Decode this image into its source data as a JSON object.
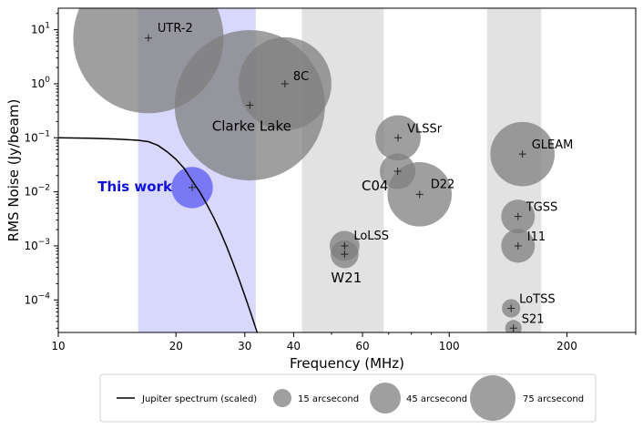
{
  "chart_data": {
    "type": "scatter",
    "xlabel": "Frequency (MHz)",
    "ylabel": "RMS Noise (Jy/beam)",
    "xscale": "log",
    "yscale": "log",
    "xlim": [
      10,
      300
    ],
    "ylim": [
      2.5e-05,
      25
    ],
    "x_ticks": [
      10,
      20,
      30,
      40,
      60,
      100,
      200
    ],
    "y_ticks": [
      {
        "value": 10,
        "mant": "10",
        "exp": "1"
      },
      {
        "value": 1,
        "mant": "10",
        "exp": "0"
      },
      {
        "value": 0.1,
        "mant": "10",
        "exp": "−1"
      },
      {
        "value": 0.01,
        "mant": "10",
        "exp": "−2"
      },
      {
        "value": 0.001,
        "mant": "10",
        "exp": "−3"
      },
      {
        "value": 0.0001,
        "mant": "10",
        "exp": "−4"
      }
    ],
    "bands": [
      {
        "x0": 16,
        "x1": 32,
        "color": "#d8d8fc"
      },
      {
        "x0": 42,
        "x1": 68,
        "color": "#e2e2e2"
      },
      {
        "x0": 125,
        "x1": 172,
        "color": "#e2e2e2"
      }
    ],
    "points": [
      {
        "label": "UTR-2",
        "x": 17,
        "y": 7,
        "res": 75,
        "highlight": false
      },
      {
        "label": "8C",
        "x": 38,
        "y": 1,
        "res": 45,
        "highlight": false
      },
      {
        "label": "Clarke Lake",
        "x": 30.9,
        "y": 0.4,
        "res": 75,
        "highlight": false
      },
      {
        "label": "VLSSr",
        "x": 74,
        "y": 0.1,
        "res": 20,
        "highlight": false
      },
      {
        "label": "C04",
        "x": 73.8,
        "y": 0.024,
        "res": 15,
        "highlight": false
      },
      {
        "label": "D22",
        "x": 84,
        "y": 0.009,
        "res": 30,
        "highlight": false
      },
      {
        "label": "GLEAM",
        "x": 154,
        "y": 0.05,
        "res": 30,
        "highlight": false
      },
      {
        "label": "This work",
        "x": 22,
        "y": 0.012,
        "res": 18,
        "highlight": true
      },
      {
        "label": "LoLSS",
        "x": 54,
        "y": 0.001,
        "res": 12,
        "highlight": false
      },
      {
        "label": "W21",
        "x": 54,
        "y": 0.0007,
        "res": 11,
        "highlight": false
      },
      {
        "label": "TGSS",
        "x": 150,
        "y": 0.0035,
        "res": 14,
        "highlight": false
      },
      {
        "label": "I11",
        "x": 150,
        "y": 0.001,
        "res": 14,
        "highlight": false
      },
      {
        "label": "LoTSS",
        "x": 144,
        "y": 7e-05,
        "res": 6,
        "highlight": false
      },
      {
        "label": "S21",
        "x": 146,
        "y": 3e-05,
        "res": 5,
        "highlight": false
      }
    ],
    "jupiter_curve": [
      [
        10,
        0.1
      ],
      [
        12,
        0.098
      ],
      [
        14,
        0.095
      ],
      [
        16,
        0.09
      ],
      [
        17,
        0.085
      ],
      [
        18,
        0.072
      ],
      [
        19,
        0.055
      ],
      [
        20,
        0.04
      ],
      [
        21,
        0.027
      ],
      [
        22,
        0.016
      ],
      [
        23,
        0.01
      ],
      [
        24,
        0.0058
      ],
      [
        25,
        0.0033
      ],
      [
        26,
        0.0018
      ],
      [
        27,
        0.00095
      ],
      [
        28,
        0.00048
      ],
      [
        29,
        0.00024
      ],
      [
        30,
        0.00012
      ],
      [
        31,
        6e-05
      ],
      [
        32,
        3e-05
      ],
      [
        32.6,
        2e-05
      ]
    ],
    "legend": {
      "line_label": "Jupiter spectrum (scaled)",
      "sizes": [
        {
          "label": "15 arcsecond",
          "res": 15
        },
        {
          "label": "45 arcsecond",
          "res": 45
        },
        {
          "label": "75 arcsecond",
          "res": 75
        }
      ]
    },
    "colors": {
      "circle": "#7f7f7f",
      "highlight": "#3b3bf0",
      "highlight_text": "#1010dd",
      "line": "#000000"
    }
  }
}
